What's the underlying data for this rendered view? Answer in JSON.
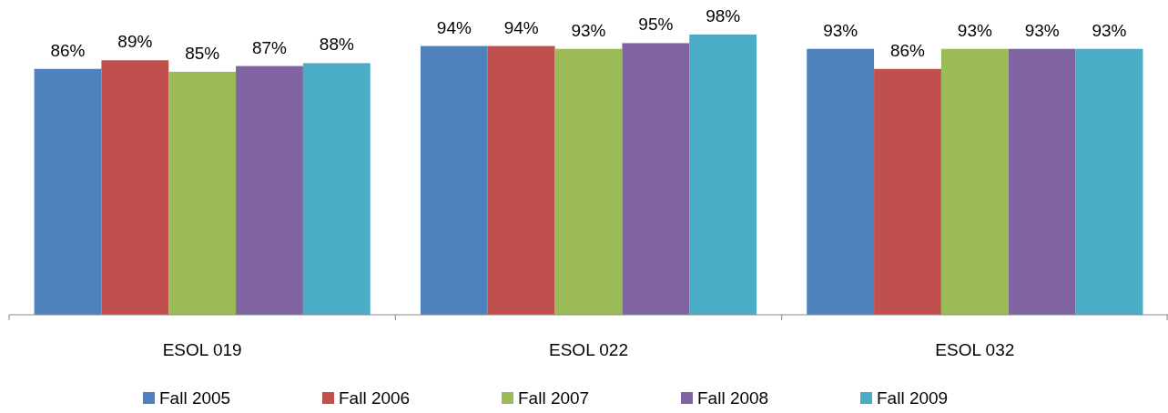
{
  "chart_data": {
    "type": "bar",
    "categories": [
      "ESOL 019",
      "ESOL 022",
      "ESOL 032"
    ],
    "series": [
      {
        "name": "Fall 2005",
        "color": "#4f81bd",
        "values": [
          86,
          94,
          93
        ],
        "value_labels": [
          "86%",
          "94%",
          "93%"
        ]
      },
      {
        "name": "Fall 2006",
        "color": "#c0504d",
        "values": [
          89,
          94,
          86
        ],
        "value_labels": [
          "89%",
          "94%",
          "86%"
        ]
      },
      {
        "name": "Fall 2007",
        "color": "#9bbb59",
        "values": [
          85,
          93,
          93
        ],
        "value_labels": [
          "85%",
          "93%",
          "93%"
        ]
      },
      {
        "name": "Fall 2008",
        "color": "#8064a2",
        "values": [
          87,
          95,
          93
        ],
        "value_labels": [
          "87%",
          "95%",
          "93%"
        ]
      },
      {
        "name": "Fall 2009",
        "color": "#4bacc6",
        "values": [
          88,
          98,
          93
        ],
        "value_labels": [
          "88%",
          "98%",
          "93%"
        ]
      }
    ],
    "legend": "bottom",
    "grid": false
  }
}
